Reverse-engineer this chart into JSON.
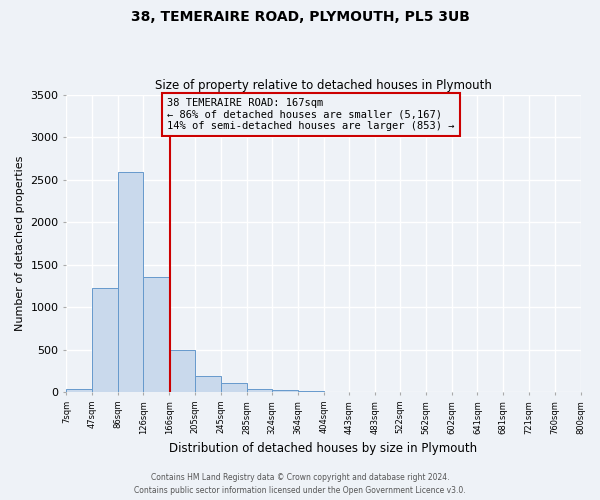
{
  "title": "38, TEMERAIRE ROAD, PLYMOUTH, PL5 3UB",
  "subtitle": "Size of property relative to detached houses in Plymouth",
  "xlabel": "Distribution of detached houses by size in Plymouth",
  "ylabel": "Number of detached properties",
  "bar_color": "#c9d9ec",
  "bar_edge_color": "#6699cc",
  "bin_edges": [
    7,
    47,
    86,
    126,
    166,
    205,
    245,
    285,
    324,
    364,
    404,
    443,
    483,
    522,
    562,
    602,
    641,
    681,
    721,
    760,
    800
  ],
  "bar_heights": [
    40,
    1230,
    2590,
    1350,
    500,
    190,
    110,
    40,
    20,
    10,
    5,
    5,
    3,
    2,
    2,
    1,
    1,
    1,
    1,
    1
  ],
  "tick_labels": [
    "7sqm",
    "47sqm",
    "86sqm",
    "126sqm",
    "166sqm",
    "205sqm",
    "245sqm",
    "285sqm",
    "324sqm",
    "364sqm",
    "404sqm",
    "443sqm",
    "483sqm",
    "522sqm",
    "562sqm",
    "602sqm",
    "641sqm",
    "681sqm",
    "721sqm",
    "760sqm",
    "800sqm"
  ],
  "ylim": [
    0,
    3500
  ],
  "yticks": [
    0,
    500,
    1000,
    1500,
    2000,
    2500,
    3000,
    3500
  ],
  "property_size": 167,
  "property_label": "38 TEMERAIRE ROAD: 167sqm",
  "annotation_line1": "← 86% of detached houses are smaller (5,167)",
  "annotation_line2": "14% of semi-detached houses are larger (853) →",
  "vline_x": 167,
  "box_color": "#cc0000",
  "footer_line1": "Contains HM Land Registry data © Crown copyright and database right 2024.",
  "footer_line2": "Contains public sector information licensed under the Open Government Licence v3.0.",
  "background_color": "#eef2f7",
  "grid_color": "#ffffff"
}
